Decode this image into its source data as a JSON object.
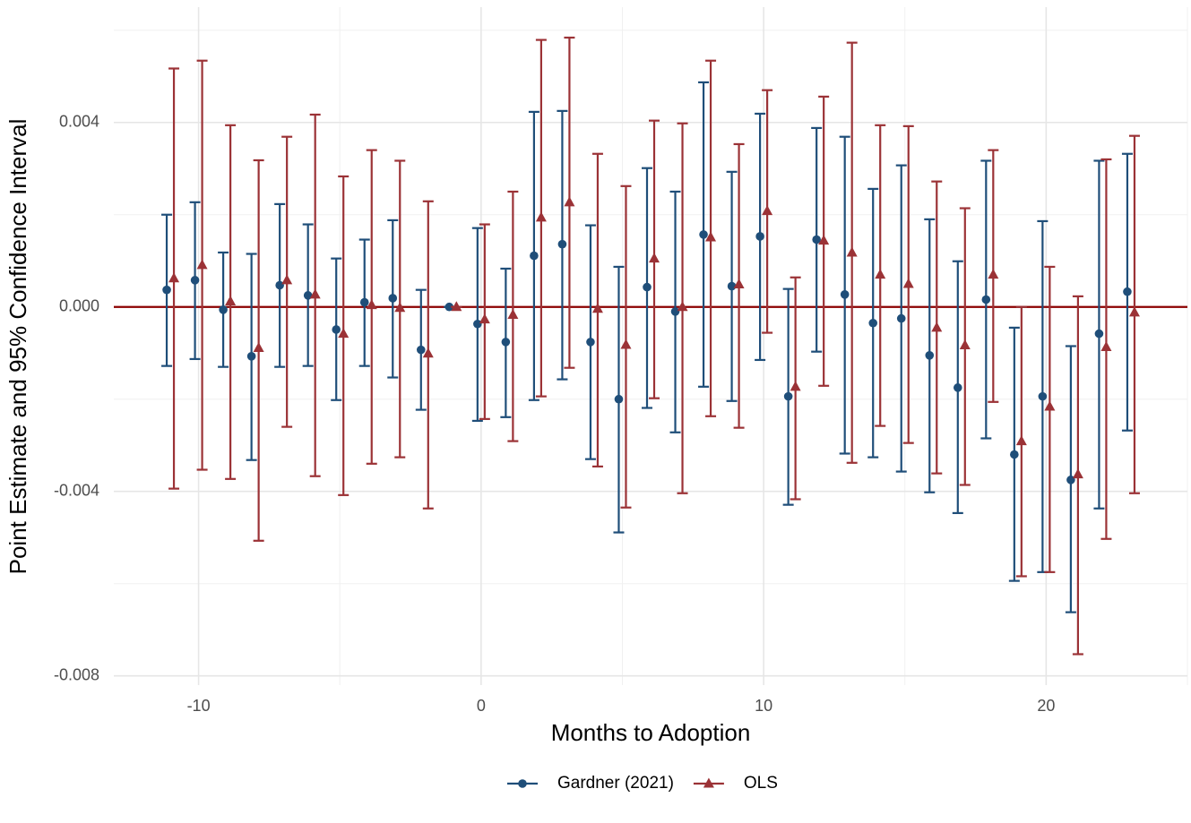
{
  "chart_data": {
    "type": "errorbar",
    "xlabel": "Months to Adoption",
    "ylabel": "Point Estimate and 95% Confidence Interval",
    "x": [
      -11,
      -10,
      -9,
      -8,
      -7,
      -6,
      -5,
      -4,
      -3,
      -2,
      -1,
      0,
      1,
      2,
      3,
      4,
      5,
      6,
      7,
      8,
      9,
      10,
      11,
      12,
      13,
      14,
      15,
      16,
      17,
      18,
      19,
      20,
      21,
      22,
      23
    ],
    "xlim": [
      -13,
      25
    ],
    "xticks": [
      -10,
      0,
      10,
      20
    ],
    "ylim": [
      -0.0082,
      0.0065
    ],
    "yticks": [
      -0.008,
      -0.004,
      {
        "value": 0,
        "label": "0.000"
      },
      0.004
    ],
    "grid": true,
    "legend": "bottom",
    "reference_line": {
      "value": 0,
      "color": "#8b0000"
    },
    "series": [
      {
        "name": "Gardner (2021)",
        "color": "#1f4e79",
        "marker": "circle",
        "values": [
          0.00037,
          0.00058,
          -6e-05,
          -0.00107,
          0.00047,
          0.00025,
          -0.00049,
          0.0001,
          0.00019,
          -0.00093,
          0,
          -0.00037,
          -0.00076,
          0.00111,
          0.00136,
          -0.00076,
          -0.002,
          0.00043,
          -0.0001,
          0.00157,
          0.00045,
          0.00153,
          -0.00194,
          0.00146,
          0.00027,
          -0.00035,
          -0.00025,
          -0.00105,
          -0.00175,
          0.00016,
          -0.0032,
          -0.00194,
          -0.00375,
          -0.00058,
          0.00033
        ],
        "lower": [
          -0.00128,
          -0.00113,
          -0.0013,
          -0.00332,
          -0.0013,
          -0.00128,
          -0.00202,
          -0.00128,
          -0.00153,
          -0.00223,
          0,
          -0.00247,
          -0.00239,
          -0.00202,
          -0.00157,
          -0.0033,
          -0.00489,
          -0.00219,
          -0.00272,
          -0.00173,
          -0.00204,
          -0.00115,
          -0.00429,
          -0.00097,
          -0.00318,
          -0.00326,
          -0.00357,
          -0.00402,
          -0.00447,
          -0.00285,
          -0.00594,
          -0.00575,
          -0.00662,
          -0.00437,
          -0.00268
        ],
        "upper": [
          0.002,
          0.00227,
          0.00118,
          0.00115,
          0.00223,
          0.00179,
          0.00105,
          0.00146,
          0.00188,
          0.00037,
          0,
          0.00171,
          0.00083,
          0.00423,
          0.00425,
          0.00177,
          0.00087,
          0.00301,
          0.0025,
          0.00487,
          0.00293,
          0.00419,
          0.00039,
          0.00388,
          0.00369,
          0.00256,
          0.00307,
          0.0019,
          0.00099,
          0.00317,
          -0.00045,
          0.00186,
          -0.00085,
          0.00317,
          0.00332
        ]
      },
      {
        "name": "OLS",
        "color": "#9b3236",
        "marker": "triangle",
        "values": [
          0.00062,
          0.00091,
          0.00012,
          -0.00089,
          0.00058,
          0.00027,
          -0.00058,
          4e-05,
          -2e-05,
          -0.00101,
          0,
          -0.00027,
          -0.00017,
          0.00194,
          0.00227,
          -4e-05,
          -0.00082,
          0.00105,
          0,
          0.00151,
          0.00049,
          0.00208,
          -0.00173,
          0.00144,
          0.00118,
          0.0007,
          0.0005,
          -0.00045,
          -0.00083,
          0.0007,
          -0.00291,
          -0.00216,
          -0.00363,
          -0.00087,
          -0.00012
        ],
        "lower": [
          -0.00394,
          -0.00353,
          -0.00373,
          -0.00507,
          -0.0026,
          -0.00367,
          -0.00408,
          -0.0034,
          -0.00326,
          -0.00437,
          0,
          -0.00243,
          -0.00291,
          -0.00194,
          -0.00132,
          -0.00346,
          -0.00435,
          -0.00198,
          -0.00404,
          -0.00237,
          -0.00262,
          -0.00056,
          -0.00417,
          -0.00171,
          -0.00338,
          -0.00258,
          -0.00295,
          -0.00361,
          -0.00386,
          -0.00206,
          -0.00584,
          -0.00575,
          -0.00753,
          -0.00503,
          -0.00404
        ],
        "upper": [
          0.00517,
          0.00534,
          0.00394,
          0.00318,
          0.00369,
          0.00417,
          0.00283,
          0.0034,
          0.00317,
          0.00229,
          0,
          0.00179,
          0.0025,
          0.00579,
          0.00584,
          0.00332,
          0.00262,
          0.00404,
          0.00398,
          0.00534,
          0.00353,
          0.0047,
          0.00064,
          0.00456,
          0.00573,
          0.00394,
          0.00392,
          0.00272,
          0.00214,
          0.0034,
          0,
          0.00087,
          0.00023,
          0.0032,
          0.00371
        ]
      }
    ]
  }
}
